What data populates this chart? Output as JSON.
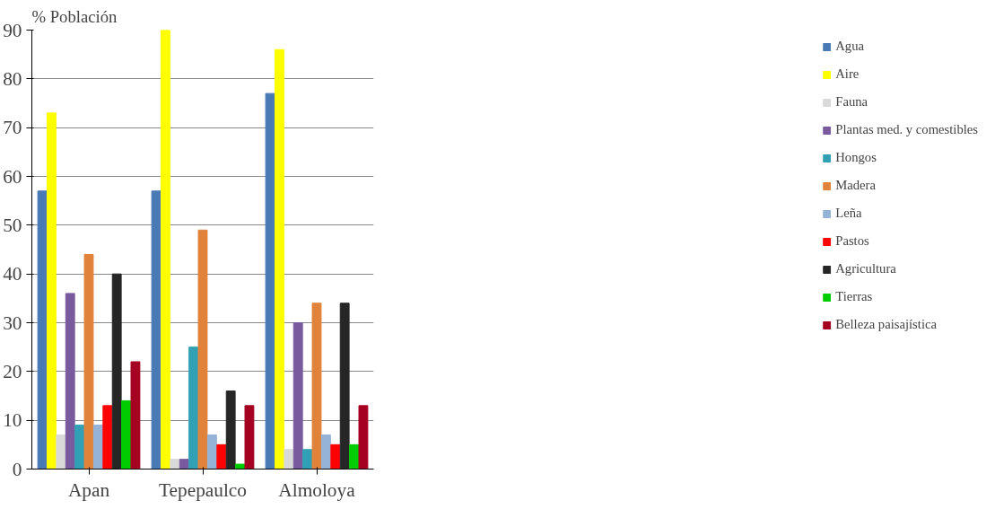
{
  "chart_data": {
    "type": "bar",
    "ylabel": "% Población",
    "categories": [
      "Apan",
      "Tepepaulco",
      "Almoloya"
    ],
    "ylim": [
      0,
      90
    ],
    "yticks": [
      0,
      10,
      20,
      30,
      40,
      50,
      60,
      70,
      80,
      90
    ],
    "grid": "y",
    "legend": "right",
    "series": [
      {
        "name": "Agua",
        "color": "#4a7ab5",
        "values": [
          57,
          57,
          77
        ]
      },
      {
        "name": "Aire",
        "color": "#ffff00",
        "values": [
          73,
          90,
          86
        ]
      },
      {
        "name": "Fauna",
        "color": "#d9d9d9",
        "values": [
          7,
          2,
          4
        ]
      },
      {
        "name": "Plantas med. y comestibles",
        "color": "#7a5a9e",
        "values": [
          36,
          2,
          30
        ]
      },
      {
        "name": "Hongos",
        "color": "#31a0b4",
        "values": [
          9,
          25,
          4
        ]
      },
      {
        "name": "Madera",
        "color": "#e0823a",
        "values": [
          44,
          49,
          34
        ]
      },
      {
        "name": "Leña",
        "color": "#95b3d7",
        "values": [
          9,
          7,
          7
        ]
      },
      {
        "name": "Pastos",
        "color": "#ff0000",
        "values": [
          13,
          5,
          5
        ]
      },
      {
        "name": "Agricultura",
        "color": "#262626",
        "values": [
          40,
          16,
          34
        ]
      },
      {
        "name": "Tierras",
        "color": "#00cc00",
        "values": [
          14,
          1,
          5
        ]
      },
      {
        "name": "Belleza paisajística",
        "color": "#a50021",
        "values": [
          22,
          13,
          13
        ]
      }
    ]
  }
}
